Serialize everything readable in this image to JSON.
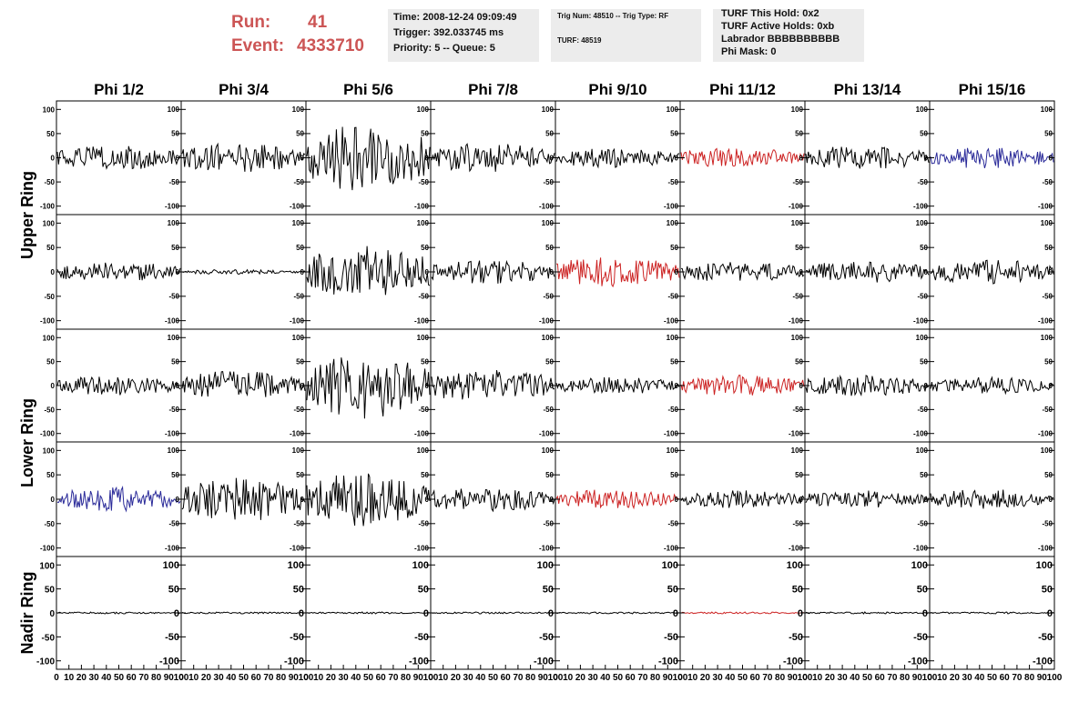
{
  "header": {
    "run_label": "Run:",
    "run_value": "41",
    "event_label": "Event:",
    "event_value": "4333710",
    "box1": [
      "Time: 2008-12-24 09:09:49",
      "Trigger: 392.033745 ms",
      "Priority: 5 -- Queue: 5"
    ],
    "box2": [
      "Trig Num: 48510 -- Trig Type: RF",
      "TURF: 48519"
    ],
    "box3": [
      "TURF This Hold: 0x2",
      "TURF Active Holds: 0xb",
      "Labrador BBBBBBBBBB",
      "Phi Mask: 0"
    ]
  },
  "colors": {
    "run_text": "#cc5555",
    "trace_black": "#000000",
    "trace_red": "#cc2222",
    "trace_blue": "#2a2a99",
    "box_bg": "#ececec"
  },
  "chart_data": {
    "type": "line",
    "columns": [
      "Phi 1/2",
      "Phi 3/4",
      "Phi 5/6",
      "Phi 7/8",
      "Phi 9/10",
      "Phi 11/12",
      "Phi 13/14",
      "Phi 15/16"
    ],
    "rows": [
      {
        "label": "Upper Ring",
        "span": 2
      },
      {
        "label": "Lower Ring",
        "span": 2
      },
      {
        "label": "Nadir Ring",
        "span": 1
      }
    ],
    "ylim": [
      -110,
      110
    ],
    "xlim": [
      0,
      100
    ],
    "y_ticks": [
      -100,
      -50,
      0,
      50,
      100
    ],
    "y_tick_labels": [
      "-100",
      "-50",
      "0",
      "50",
      "100"
    ],
    "x_tick_labels": [
      "0",
      "10",
      "20",
      "30",
      "40",
      "50",
      "60",
      "70",
      "80",
      "90",
      "100"
    ],
    "trace_amplitude": [
      [
        25,
        30,
        70,
        30,
        20,
        20,
        25,
        22
      ],
      [
        20,
        5,
        55,
        25,
        30,
        22,
        22,
        25
      ],
      [
        20,
        30,
        70,
        35,
        18,
        22,
        22,
        18
      ],
      [
        25,
        45,
        55,
        25,
        20,
        18,
        18,
        20
      ],
      [
        2,
        2,
        2,
        2,
        2,
        2,
        2,
        2
      ]
    ],
    "trace_color": [
      [
        "black",
        "black",
        "black",
        "black",
        "black",
        "red",
        "black",
        "blue"
      ],
      [
        "black",
        "black",
        "black",
        "black",
        "red",
        "black",
        "black",
        "black"
      ],
      [
        "black",
        "black",
        "black",
        "black",
        "black",
        "red",
        "black",
        "black"
      ],
      [
        "blue",
        "black",
        "black",
        "black",
        "red",
        "black",
        "black",
        "black"
      ],
      [
        "black",
        "black",
        "black",
        "black",
        "black",
        "red",
        "black",
        "black"
      ]
    ],
    "samples": 100
  }
}
